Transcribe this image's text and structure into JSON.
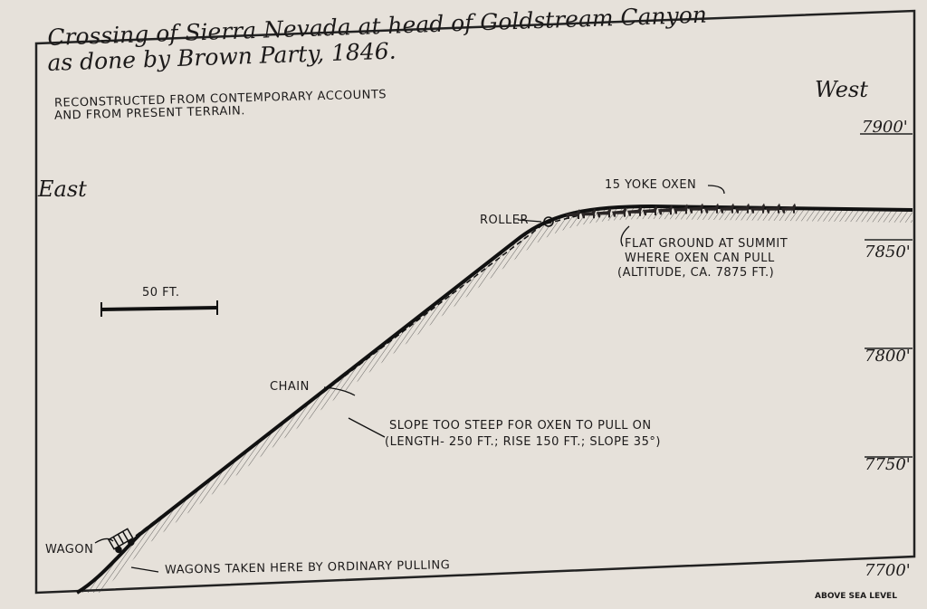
{
  "title": {
    "line1": "Crossing of Sierra Nevada at head of Goldstream Canyon",
    "line2": "as done by Brown Party, 1846.",
    "subtitle1": "RECONSTRUCTED FROM CONTEMPORARY ACCOUNTS",
    "subtitle2": "AND FROM PRESENT TERRAIN."
  },
  "directions": {
    "east": "East",
    "west": "West"
  },
  "altitude_axis": {
    "ticks": [
      "7900'",
      "7850'",
      "7800'",
      "7750'",
      "7700'"
    ],
    "unit_note": "ABOVE SEA LEVEL"
  },
  "scale_bar": {
    "label": "50 FT."
  },
  "labels": {
    "oxen": "15 YOKE OXEN",
    "roller": "ROLLER",
    "summit1": "FLAT GROUND AT SUMMIT",
    "summit2": "WHERE OXEN CAN PULL",
    "summit3": "(ALTITUDE, CA. 7875 FT.)",
    "chain": "CHAIN",
    "slope1": "SLOPE TOO STEEP FOR OXEN TO PULL ON",
    "slope2": "(LENGTH- 250 FT.; RISE 150 FT.; SLOPE 35°)",
    "wagon": "WAGON",
    "wagons_pulled": "WAGONS TAKEN HERE BY ORDINARY PULLING"
  }
}
